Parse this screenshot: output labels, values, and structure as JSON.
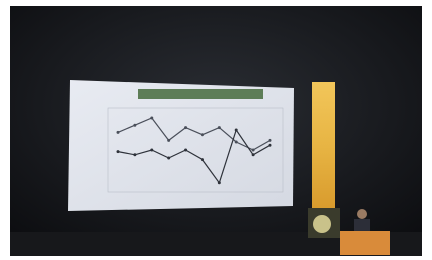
{
  "chart_data": {
    "type": "line",
    "series": [
      {
        "color": "#4a4f5a",
        "values": [
          72,
          81,
          90,
          62,
          78,
          69,
          78,
          60,
          50,
          62
        ]
      },
      {
        "color": "#2e323a",
        "values": [
          48,
          44,
          50,
          40,
          50,
          38,
          9,
          75,
          44,
          56
        ]
      }
    ],
    "ylim": [
      0,
      100
    ]
  }
}
